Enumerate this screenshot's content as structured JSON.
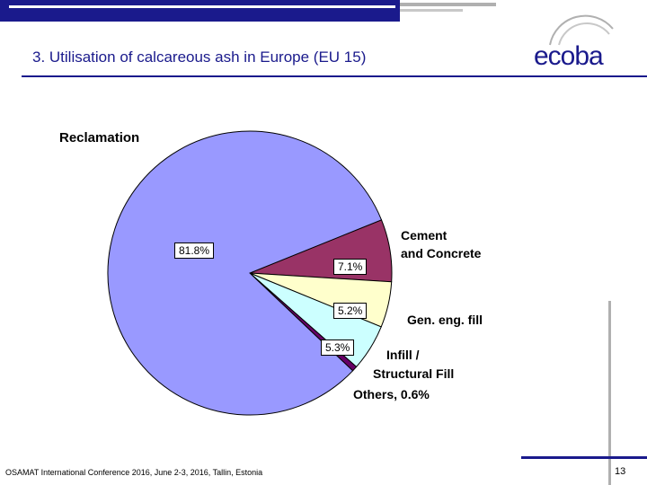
{
  "slide": {
    "title": "3. Utilisation of calcareous ash in Europe (EU 15)",
    "logo_text": "ecoba",
    "footer": "OSAMAT International Conference 2016, June 2-3, 2016, Tallin, Estonia",
    "page_number": "13"
  },
  "chart_data": {
    "type": "pie",
    "title": "",
    "slices": [
      {
        "name": "Reclamation",
        "value": 81.8,
        "label": "81.8%",
        "color": "#9999ff"
      },
      {
        "name": "Cement and Concrete",
        "value": 7.1,
        "label": "7.1%",
        "color": "#993366"
      },
      {
        "name": "Gen. eng. fill",
        "value": 5.2,
        "label": "5.2%",
        "color": "#ffffcc"
      },
      {
        "name": "Infill / Structural Fill",
        "value": 5.3,
        "label": "5.3%",
        "color": "#ccffff"
      },
      {
        "name": "Others, 0.6%",
        "value": 0.6,
        "label": "",
        "color": "#660066"
      }
    ],
    "category_labels": {
      "reclamation": "Reclamation",
      "cement_line1": "Cement",
      "cement_line2": "and Concrete",
      "fill": "Gen. eng. fill",
      "infill_line1": "Infill /",
      "infill_line2": "Structural Fill",
      "others": "Others, 0.6%"
    }
  }
}
